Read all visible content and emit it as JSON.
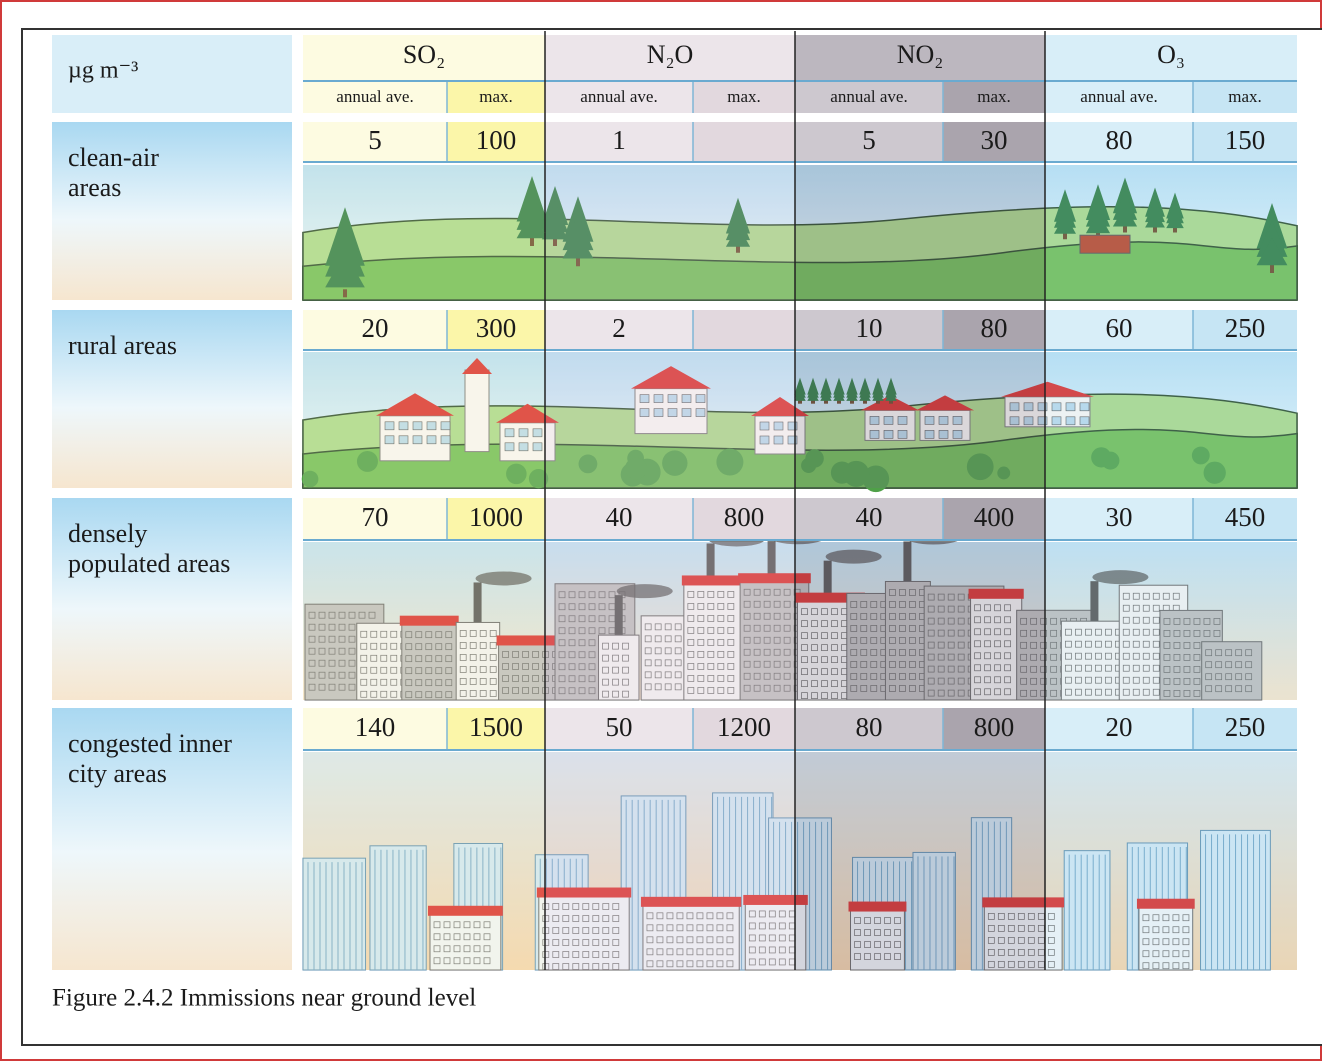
{
  "unit": "µg m⁻³",
  "pollutants": [
    {
      "name": "SO₂",
      "columns": [
        "annual ave.",
        "max."
      ]
    },
    {
      "name": "N₂O",
      "columns": [
        "annual ave.",
        "max."
      ]
    },
    {
      "name": "NO₂",
      "columns": [
        "annual ave.",
        "max."
      ]
    },
    {
      "name": "O₃",
      "columns": [
        "annual ave.",
        "max."
      ]
    }
  ],
  "rows": [
    {
      "label": [
        "clean-air",
        "areas"
      ],
      "values": [
        5,
        100,
        1,
        null,
        5,
        30,
        80,
        150
      ]
    },
    {
      "label": [
        "rural areas"
      ],
      "values": [
        20,
        300,
        2,
        null,
        10,
        80,
        60,
        250
      ]
    },
    {
      "label": [
        "densely",
        "populated areas"
      ],
      "values": [
        70,
        1000,
        40,
        800,
        40,
        400,
        30,
        450
      ]
    },
    {
      "label": [
        "congested inner",
        "city areas"
      ],
      "values": [
        140,
        1500,
        50,
        1200,
        80,
        800,
        20,
        250
      ]
    }
  ],
  "caption": "Figure 2.4.2 Immissions near ground level"
}
